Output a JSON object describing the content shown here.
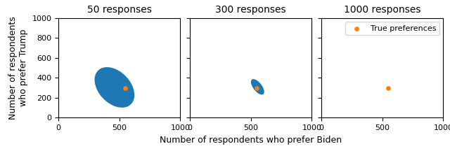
{
  "chart_data": [
    {
      "type": "scatter",
      "title": "50 responses",
      "ylabel": "Number of respondents\nwho prefer Trump",
      "xlim": [
        0,
        1000
      ],
      "ylim": [
        0,
        1000
      ],
      "xticks": [
        0,
        500,
        1000
      ],
      "yticks": [
        0,
        200,
        400,
        600,
        800,
        1000
      ],
      "ellipse": {
        "cx": 460,
        "cy": 305,
        "width": 280,
        "height": 440,
        "angle": 30
      },
      "series": [
        {
          "x": [
            550
          ],
          "values": [
            300
          ]
        }
      ]
    },
    {
      "type": "scatter",
      "title": "300 responses",
      "xlabel": "Number of respondents who prefer Biden",
      "xlim": [
        0,
        1000
      ],
      "ylim": [
        0,
        1000
      ],
      "xticks": [
        0,
        500,
        1000
      ],
      "yticks": [
        0,
        200,
        400,
        600,
        800,
        1000
      ],
      "tick_labels": "x",
      "ellipse": {
        "cx": 555,
        "cy": 310,
        "width": 75,
        "height": 175,
        "angle": 30
      },
      "series": [
        {
          "x": [
            550
          ],
          "values": [
            300
          ]
        }
      ]
    },
    {
      "type": "scatter",
      "title": "1000 responses",
      "xlim": [
        0,
        1000
      ],
      "ylim": [
        0,
        1000
      ],
      "xticks": [
        0,
        500,
        1000
      ],
      "yticks": [
        0,
        200,
        400,
        600,
        800,
        1000
      ],
      "tick_labels": "x",
      "legend": "upper right",
      "ellipse": {
        "cx": 550,
        "cy": 300,
        "width": 10,
        "height": 10,
        "angle": 0
      },
      "series": [
        {
          "name": "True preferences",
          "x": [
            550
          ],
          "values": [
            300
          ]
        }
      ]
    }
  ]
}
